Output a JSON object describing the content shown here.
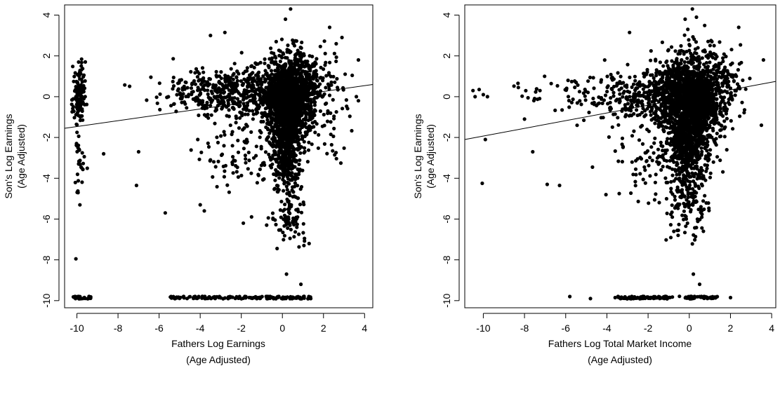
{
  "chart_data": [
    {
      "type": "scatter",
      "title": "",
      "xlabel": [
        "Fathers Log Earnings",
        "(Age Adjusted)"
      ],
      "ylabel": [
        "Son's Log Earnings",
        "(Age Adjusted)"
      ],
      "xlim": [
        -10.6,
        4.4
      ],
      "ylim": [
        -10.35,
        4.5
      ],
      "xticks": [
        "-10",
        "-8",
        "-6",
        "-4",
        "-2",
        "0",
        "2",
        "4"
      ],
      "yticks": [
        "4",
        "2",
        "0",
        "-2",
        "-4",
        "-6",
        "-8",
        "-10"
      ],
      "grid": false,
      "regression_line": {
        "x": [
          -10.6,
          4.4
        ],
        "y": [
          -1.55,
          0.6
        ]
      },
      "clusters": [
        {
          "cx": 0.3,
          "cy": -0.2,
          "sx": 0.6,
          "sy": 1.1,
          "n": 1400
        },
        {
          "cx": 0.2,
          "cy": -2.5,
          "sx": 0.35,
          "sy": 1.3,
          "n": 400
        },
        {
          "cx": -1.5,
          "cy": 0.2,
          "sx": 1.6,
          "sy": 0.6,
          "n": 500
        },
        {
          "cx": -4.5,
          "cy": 0.3,
          "sx": 1.2,
          "sy": 0.5,
          "n": 90
        },
        {
          "cx": -9.9,
          "cy": 0.1,
          "sx": 0.15,
          "sy": 0.7,
          "n": 120
        },
        {
          "cx": -9.85,
          "cy": -3.0,
          "sx": 0.12,
          "sy": 1.3,
          "n": 35
        },
        {
          "cx": 0.4,
          "cy": -5.8,
          "sx": 0.45,
          "sy": 0.8,
          "n": 80
        },
        {
          "cx": 1.5,
          "cy": 0.8,
          "sx": 0.6,
          "sy": 0.8,
          "n": 150
        },
        {
          "cx": -2.0,
          "cy": -2.8,
          "sx": 1.2,
          "sy": 0.9,
          "n": 90
        },
        {
          "cx": 2.5,
          "cy": -1.5,
          "sx": 0.3,
          "sy": 0.9,
          "n": 25
        }
      ],
      "bottom_band": [
        {
          "x0": -10.2,
          "x1": -9.3,
          "y": -9.85,
          "n": 30
        },
        {
          "x0": -5.5,
          "x1": 1.5,
          "y": -9.85,
          "n": 150
        }
      ],
      "points": [
        {
          "x": 0.4,
          "y": 4.3
        },
        {
          "x": 0.15,
          "y": 3.8
        },
        {
          "x": -3.5,
          "y": 3.0
        },
        {
          "x": -2.8,
          "y": 3.15
        },
        {
          "x": -0.3,
          "y": 2.7
        },
        {
          "x": 2.3,
          "y": 3.4
        },
        {
          "x": 2.9,
          "y": 2.9
        },
        {
          "x": 3.7,
          "y": 1.8
        },
        {
          "x": -10.05,
          "y": -7.95
        },
        {
          "x": -7.1,
          "y": -4.35
        },
        {
          "x": -5.7,
          "y": -5.7
        },
        {
          "x": -4.0,
          "y": -5.3
        },
        {
          "x": -3.8,
          "y": -5.6
        },
        {
          "x": -1.9,
          "y": -6.2
        },
        {
          "x": 0.2,
          "y": -8.7
        },
        {
          "x": 0.9,
          "y": -9.2
        },
        {
          "x": 1.3,
          "y": -7.2
        },
        {
          "x": -8.7,
          "y": -2.8
        },
        {
          "x": -7.0,
          "y": -2.7
        },
        {
          "x": 3.6,
          "y": 0.0
        },
        {
          "x": 3.7,
          "y": -0.2
        }
      ]
    },
    {
      "type": "scatter",
      "title": "",
      "xlabel": [
        "Fathers Log Total Market Income",
        "(Age Adjusted)"
      ],
      "ylabel": [
        "Son's Log Earnings",
        "(Age Adjusted)"
      ],
      "xlim": [
        -10.9,
        4.2
      ],
      "ylim": [
        -10.35,
        4.5
      ],
      "xticks": [
        "-10",
        "-8",
        "-6",
        "-4",
        "-2",
        "0",
        "2",
        "4"
      ],
      "yticks": [
        "4",
        "2",
        "0",
        "-2",
        "-4",
        "-6",
        "-8",
        "-10"
      ],
      "grid": false,
      "regression_line": {
        "x": [
          -10.9,
          4.2
        ],
        "y": [
          -2.1,
          0.75
        ]
      },
      "clusters": [
        {
          "cx": 0.1,
          "cy": -0.3,
          "sx": 0.7,
          "sy": 1.2,
          "n": 1500
        },
        {
          "cx": -0.1,
          "cy": -2.8,
          "sx": 0.45,
          "sy": 1.3,
          "n": 400
        },
        {
          "cx": -1.5,
          "cy": 0.1,
          "sx": 1.2,
          "sy": 0.7,
          "n": 400
        },
        {
          "cx": -4.5,
          "cy": 0.1,
          "sx": 1.1,
          "sy": 0.6,
          "n": 80
        },
        {
          "cx": 0.0,
          "cy": -5.5,
          "sx": 0.5,
          "sy": 0.8,
          "n": 80
        },
        {
          "cx": 1.6,
          "cy": 0.5,
          "sx": 0.6,
          "sy": 0.9,
          "n": 150
        },
        {
          "cx": -1.8,
          "cy": -3.0,
          "sx": 0.9,
          "sy": 1.0,
          "n": 90
        },
        {
          "cx": -7.3,
          "cy": 0.3,
          "sx": 0.5,
          "sy": 0.3,
          "n": 15
        }
      ],
      "bottom_band": [
        {
          "x0": -3.5,
          "x1": 1.4,
          "y": -9.85,
          "n": 130
        }
      ],
      "points": [
        {
          "x": -10.5,
          "y": 0.3
        },
        {
          "x": -10.2,
          "y": 0.35
        },
        {
          "x": -10.0,
          "y": 0.1
        },
        {
          "x": -9.8,
          "y": 0.0
        },
        {
          "x": -10.4,
          "y": 0.0
        },
        {
          "x": -9.9,
          "y": -2.1
        },
        {
          "x": -10.05,
          "y": -4.25
        },
        {
          "x": -8.3,
          "y": 0.45
        },
        {
          "x": -8.0,
          "y": -1.1
        },
        {
          "x": -6.9,
          "y": -4.3
        },
        {
          "x": -6.3,
          "y": -4.35
        },
        {
          "x": -7.6,
          "y": -2.7
        },
        {
          "x": -5.8,
          "y": -9.8
        },
        {
          "x": -4.8,
          "y": -9.9
        },
        {
          "x": -3.4,
          "y": -4.75
        },
        {
          "x": -2.9,
          "y": 3.15
        },
        {
          "x": -0.2,
          "y": 3.8
        },
        {
          "x": 0.15,
          "y": 4.3
        },
        {
          "x": 0.35,
          "y": 3.9
        },
        {
          "x": 2.4,
          "y": 3.4
        },
        {
          "x": 3.6,
          "y": 1.8
        },
        {
          "x": 3.5,
          "y": -1.4
        },
        {
          "x": 0.2,
          "y": -8.7
        },
        {
          "x": 0.5,
          "y": -9.2
        },
        {
          "x": 2.0,
          "y": -9.85
        },
        {
          "x": -3.6,
          "y": -9.85
        }
      ]
    }
  ]
}
